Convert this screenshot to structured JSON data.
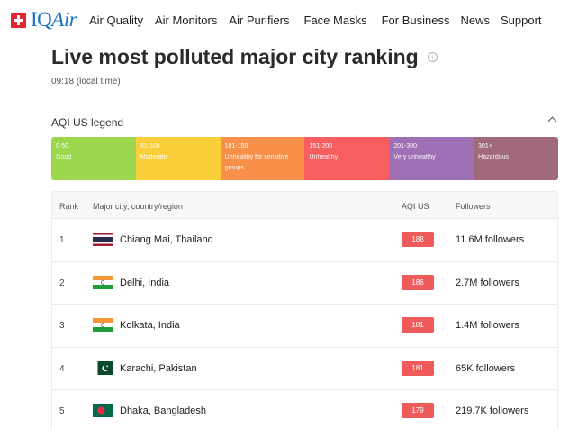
{
  "nav": {
    "brand_iq": "IQ",
    "brand_air": "Air",
    "items": [
      "Air Quality",
      "Air Monitors",
      "Air Purifiers",
      "Face Masks",
      "For Business",
      "News",
      "Support"
    ]
  },
  "page": {
    "title": "Live most polluted major city ranking",
    "time": "09:18 (local time)"
  },
  "legend": {
    "heading": "AQI US legend",
    "items": [
      {
        "range": "0-50",
        "label": "Good",
        "color": "#9cd84e"
      },
      {
        "range": "51-100",
        "label": "Moderate",
        "color": "#facf39"
      },
      {
        "range": "101-150",
        "label": "Unhealthy for sensitive groups",
        "color": "#f99049"
      },
      {
        "range": "151-200",
        "label": "Unhealthy",
        "color": "#f65e5f"
      },
      {
        "range": "201-300",
        "label": "Very unhealthy",
        "color": "#a070b6"
      },
      {
        "range": "301+",
        "label": "Hazardous",
        "color": "#a06a7b"
      }
    ]
  },
  "table": {
    "headers": {
      "rank": "Rank",
      "city": "Major city, country/region",
      "aqi": "AQI US",
      "followers": "Followers"
    },
    "rows": [
      {
        "rank": "1",
        "city": "Chiang Mai, Thailand",
        "flag": "thailand-flag-icon",
        "aqi": "188",
        "followers": "11.6M followers"
      },
      {
        "rank": "2",
        "city": "Delhi, India",
        "flag": "india-flag-icon",
        "aqi": "186",
        "followers": "2.7M followers"
      },
      {
        "rank": "3",
        "city": "Kolkata, India",
        "flag": "india-flag-icon",
        "aqi": "181",
        "followers": "1.4M followers"
      },
      {
        "rank": "4",
        "city": "Karachi, Pakistan",
        "flag": "pakistan-flag-icon",
        "aqi": "181",
        "followers": "65K followers"
      },
      {
        "rank": "5",
        "city": "Dhaka, Bangladesh",
        "flag": "bangladesh-flag-icon",
        "aqi": "179",
        "followers": "219.7K followers"
      }
    ]
  },
  "colors": {
    "aqi_badge": "#ef5b5b",
    "brand": "#1a73c9",
    "swiss_flag": "#e3262f"
  }
}
